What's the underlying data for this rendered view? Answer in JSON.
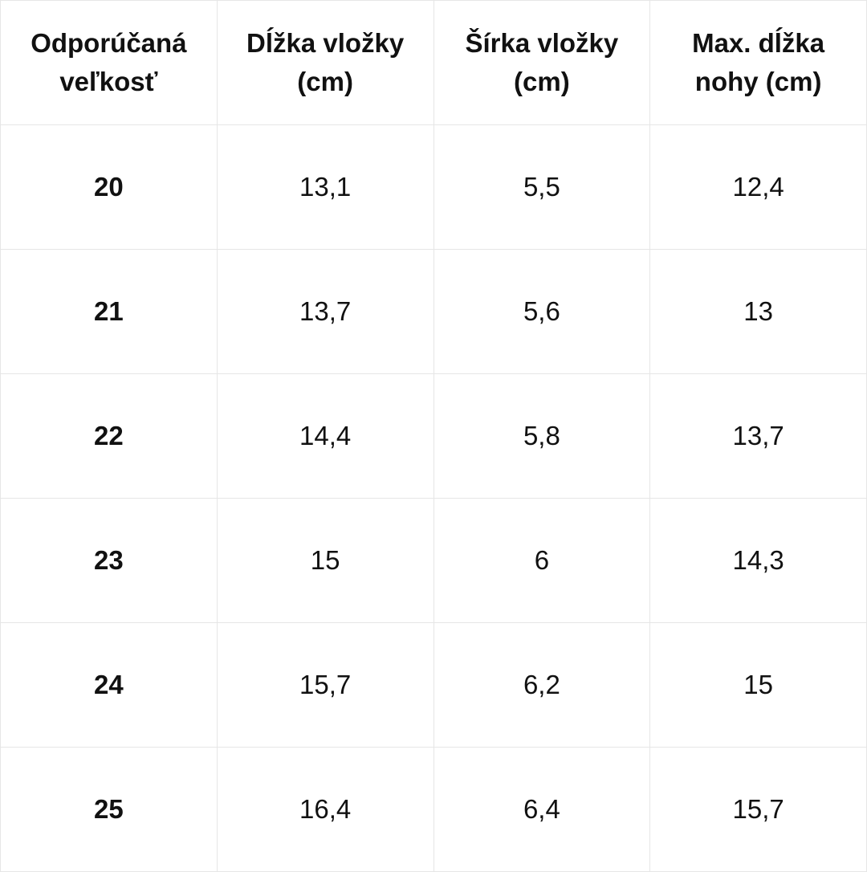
{
  "table": {
    "header": [
      "Odporúčaná veľkosť",
      "Dĺžka vložky (cm)",
      "Šírka vložky (cm)",
      "Max. dĺžka nohy (cm)"
    ],
    "rows": [
      [
        "20",
        "13,1",
        "5,5",
        "12,4"
      ],
      [
        "21",
        "13,7",
        "5,6",
        "13"
      ],
      [
        "22",
        "14,4",
        "5,8",
        "13,7"
      ],
      [
        "23",
        "15",
        "6",
        "14,3"
      ],
      [
        "24",
        "15,7",
        "6,2",
        "15"
      ],
      [
        "25",
        "16,4",
        "6,4",
        "15,7"
      ]
    ]
  }
}
